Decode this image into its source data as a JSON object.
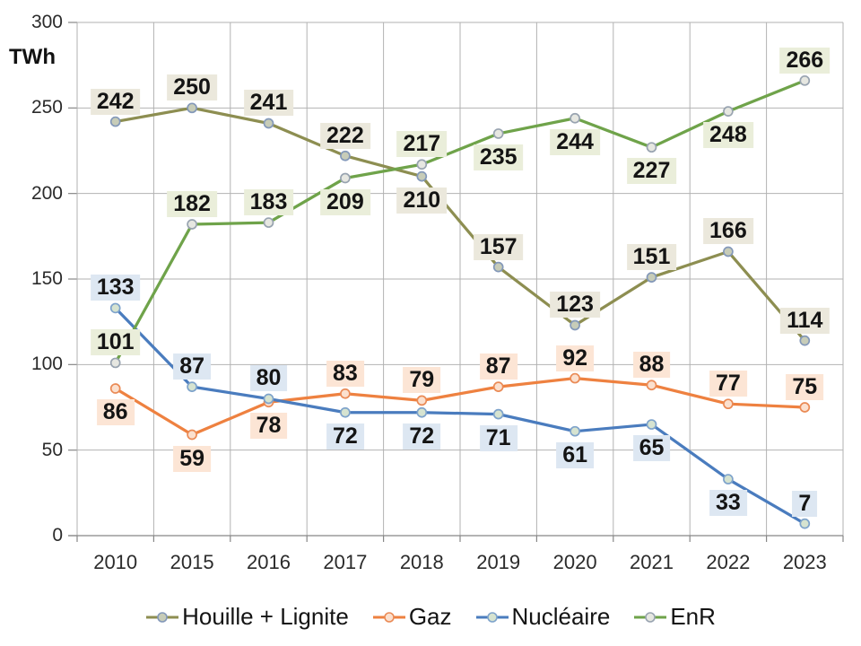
{
  "chart_data": {
    "type": "line",
    "title": "",
    "ylabel": "TWh",
    "xlabel": "",
    "categories": [
      "2010",
      "2015",
      "2016",
      "2017",
      "2018",
      "2019",
      "2020",
      "2021",
      "2022",
      "2023"
    ],
    "y_ticks": [
      0,
      50,
      100,
      150,
      200,
      250,
      300
    ],
    "ylim": [
      0,
      300
    ],
    "grid": true,
    "legend_position": "bottom",
    "style": {
      "grid_color": "#b2b2b2",
      "axis_color": "#878787",
      "tick_label_color": "#2b2b2b",
      "data_label_color": "#141414",
      "background": "#ffffff"
    },
    "series": [
      {
        "key": "houille-lignite",
        "name": "Houille + Lignite",
        "values": [
          242,
          250,
          241,
          222,
          210,
          157,
          123,
          151,
          166,
          114
        ],
        "color": "#8d8e51",
        "marker_fill": "#c7ccb8",
        "marker_stroke": "#8398b9",
        "label_bg": "#ebe8dc",
        "label_placement": [
          "above",
          "above",
          "above",
          "above",
          "below",
          "above",
          "above",
          "above",
          "above",
          "above"
        ]
      },
      {
        "key": "gaz",
        "name": "Gaz",
        "values": [
          86,
          59,
          78,
          83,
          79,
          87,
          92,
          88,
          77,
          75
        ],
        "color": "#ee8140",
        "marker_fill": "#fbe0ce",
        "marker_stroke": "#ea8a55",
        "label_bg": "#fce5d5",
        "label_placement": [
          "below",
          "below",
          "below",
          "above",
          "above",
          "above",
          "above",
          "above",
          "above",
          "above"
        ]
      },
      {
        "key": "nucleaire",
        "name": "Nucléaire",
        "values": [
          133,
          87,
          80,
          72,
          72,
          71,
          61,
          65,
          33,
          7
        ],
        "color": "#4a7cbe",
        "marker_fill": "#d6e3d0",
        "marker_stroke": "#7ea3cb",
        "label_bg": "#dde7f2",
        "label_placement": [
          "above",
          "above",
          "above",
          "below",
          "below",
          "below",
          "below",
          "below",
          "below",
          "above"
        ]
      },
      {
        "key": "enr",
        "name": "EnR",
        "values": [
          101,
          182,
          183,
          209,
          217,
          235,
          244,
          227,
          248,
          266
        ],
        "color": "#6fa34a",
        "marker_fill": "#e6e7e1",
        "marker_stroke": "#98a3b0",
        "label_bg": "#eaeeda",
        "label_placement": [
          "above",
          "above",
          "above",
          "below",
          "above",
          "below",
          "below",
          "below",
          "below",
          "above"
        ]
      }
    ]
  }
}
